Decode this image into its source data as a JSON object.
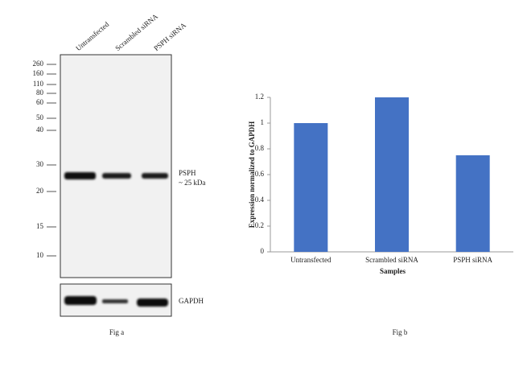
{
  "blot": {
    "lanes": [
      "Untransfected",
      "Scrambled siRNA",
      "PSPH siRNA"
    ],
    "markers": [
      "260",
      "160",
      "110",
      "80",
      "60",
      "50",
      "40",
      "30",
      "20",
      "15",
      "10"
    ],
    "target_label": [
      "PSPH",
      "~ 25 kDa"
    ],
    "control_label": "GAPDH",
    "caption": "Fig a"
  },
  "chart_data": {
    "type": "bar",
    "categories": [
      "Untransfected",
      "Scrambled siRNA",
      "PSPH siRNA"
    ],
    "values": [
      1,
      1.2,
      0.75
    ],
    "color": "#4472c4",
    "ylim": [
      0,
      1.2
    ],
    "yticks": [
      0,
      0.2,
      0.4,
      0.6,
      0.8,
      1,
      1.2
    ],
    "ylabel": "Expression normalized to GAPDH",
    "xlabel": "Samples",
    "grid": false,
    "caption": "Fig b"
  }
}
